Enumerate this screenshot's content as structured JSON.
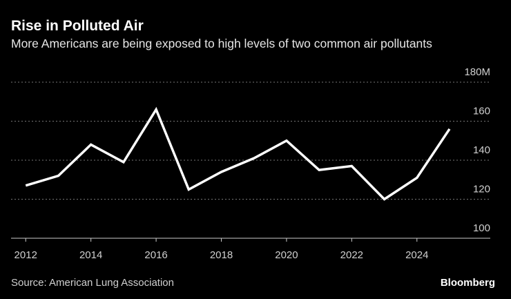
{
  "chart_data": {
    "type": "line",
    "title": "Rise in Polluted Air",
    "subtitle": "More Americans are being exposed to high levels of two common air pollutants",
    "x": [
      2012,
      2013,
      2014,
      2015,
      2016,
      2017,
      2018,
      2019,
      2020,
      2021,
      2022,
      2023,
      2024,
      2025
    ],
    "series": [
      {
        "color": "#ffffff",
        "values": [
          127,
          132,
          148,
          139,
          166,
          125,
          134,
          141,
          150,
          135,
          137,
          120,
          131,
          156
        ]
      }
    ],
    "xlim": [
      2011.55,
      2026.25
    ],
    "xticks": [
      2012,
      2014,
      2016,
      2018,
      2020,
      2022,
      2024
    ],
    "ylim": [
      100,
      180
    ],
    "yticks": [
      100,
      120,
      140,
      160,
      {
        "value": 180,
        "label": "180M"
      }
    ],
    "grid": true,
    "source": "Source: American Lung Association",
    "brand": "Bloomberg"
  }
}
